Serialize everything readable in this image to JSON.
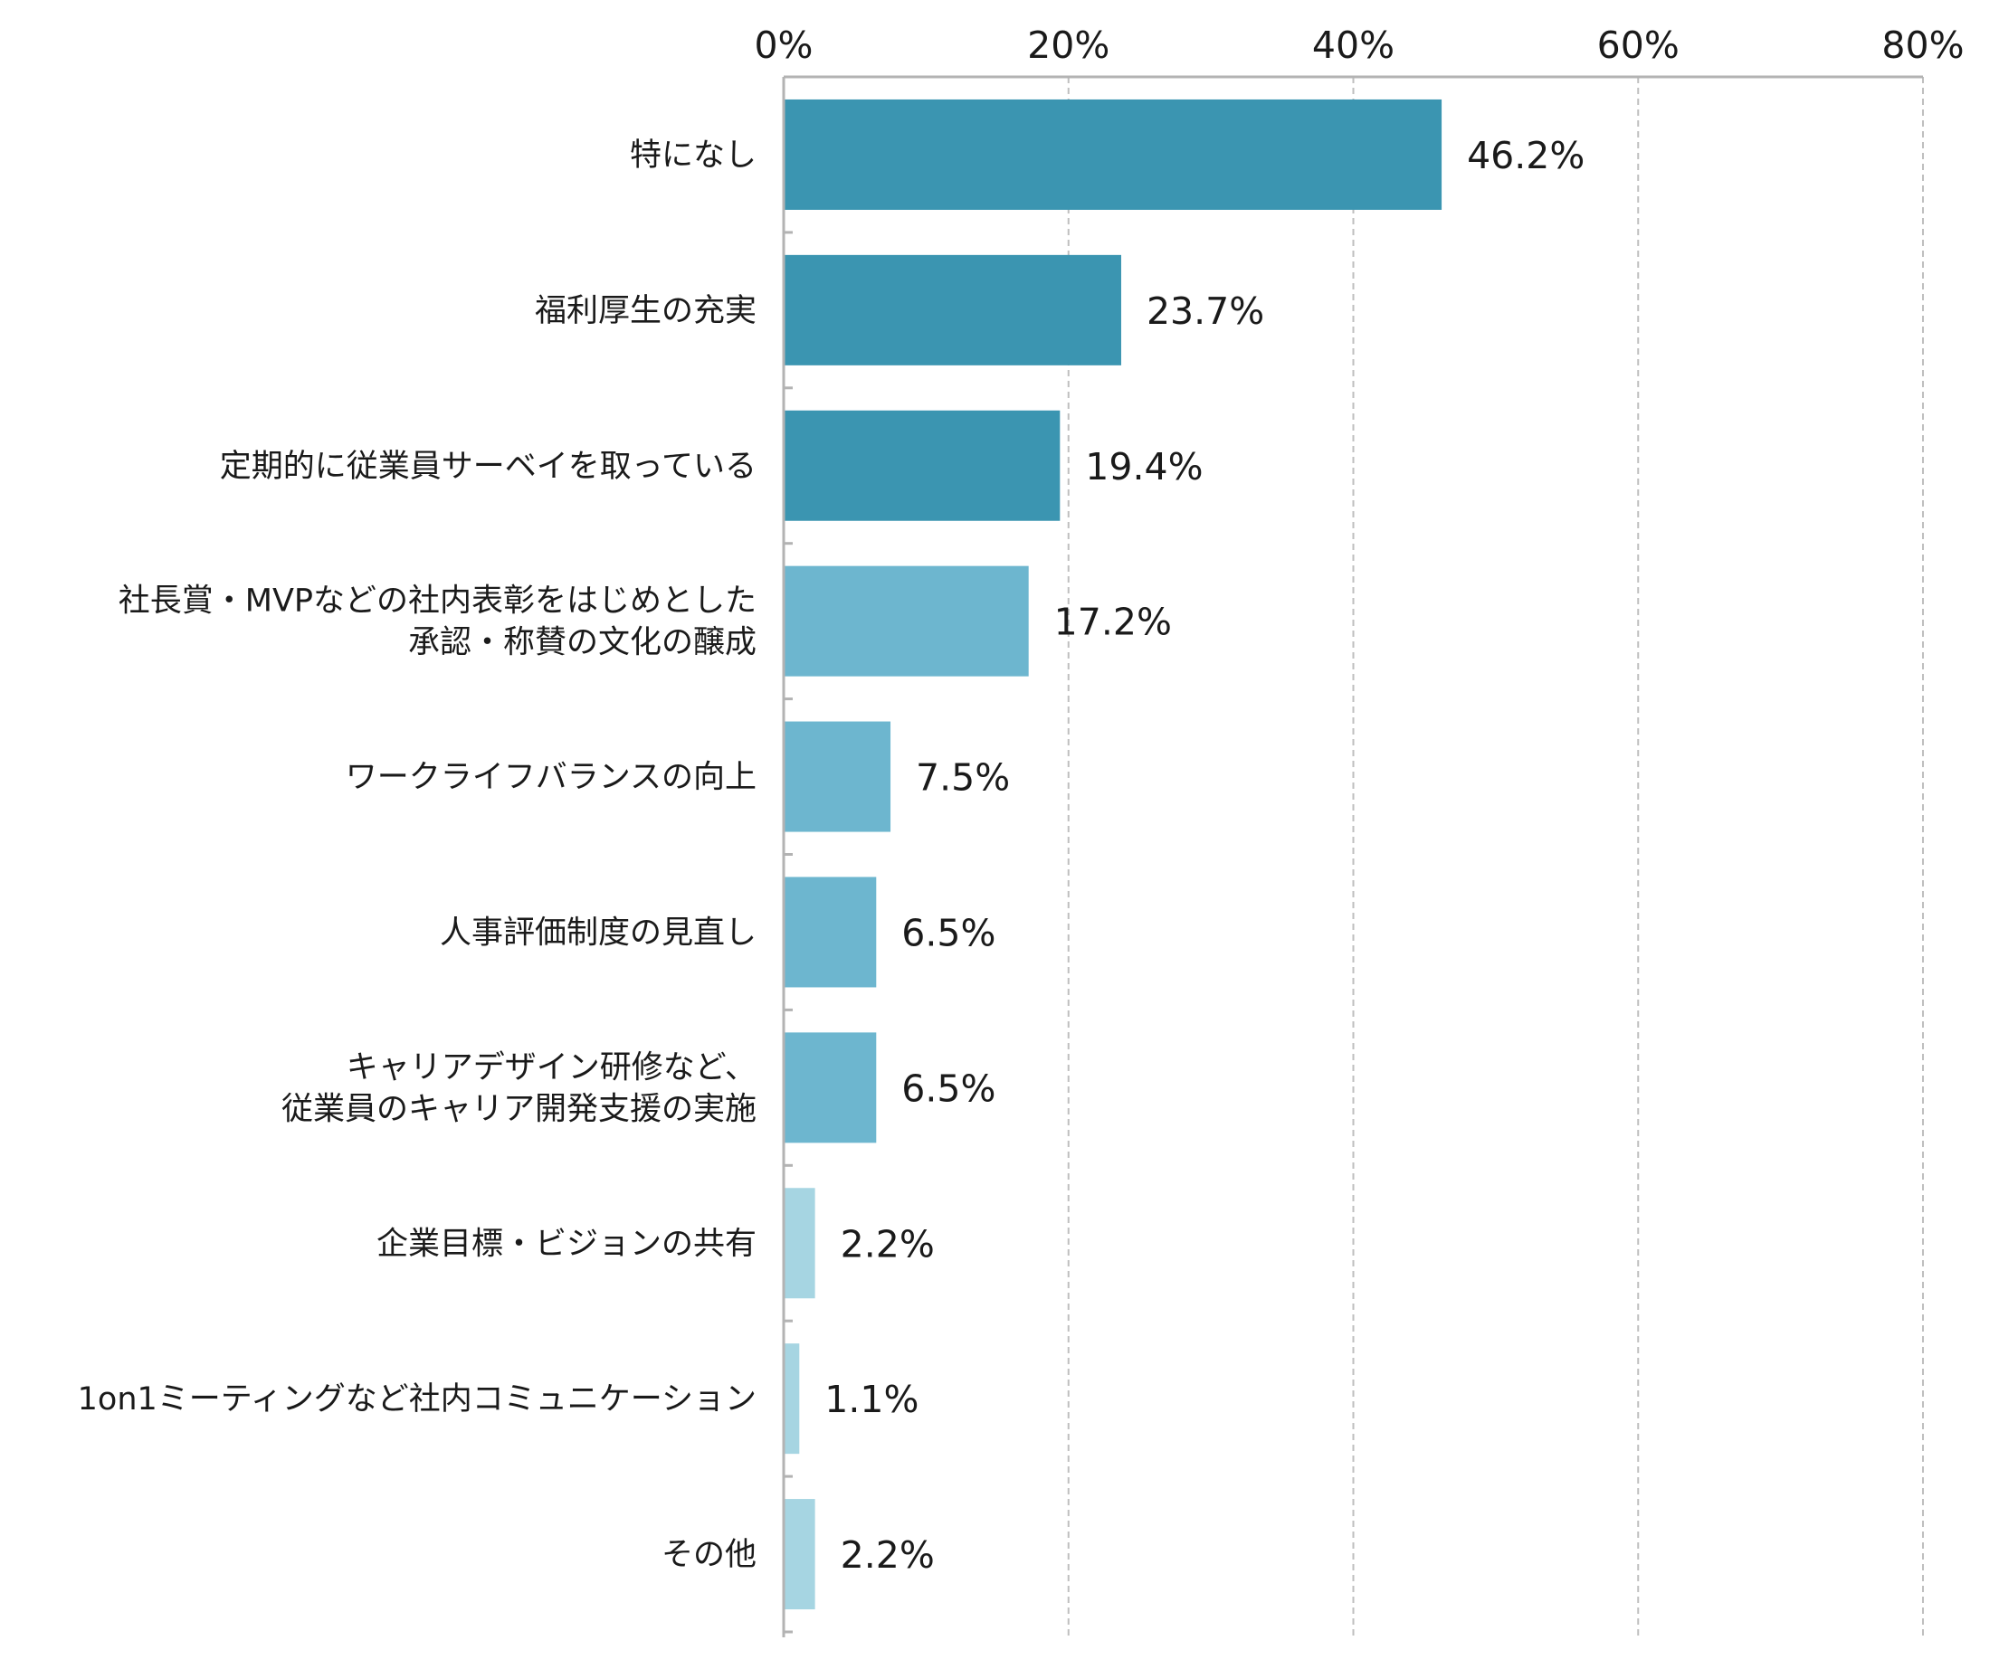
{
  "chart_data": {
    "type": "bar",
    "orientation": "horizontal",
    "categories": [
      [
        "特になし"
      ],
      [
        "福利厚生の充実"
      ],
      [
        "定期的に従業員サーベイを取っている"
      ],
      [
        "社長賞・MVPなどの社内表彰をはじめとした",
        "承認・称賛の文化の醸成"
      ],
      [
        "ワークライフバランスの向上"
      ],
      [
        "人事評価制度の見直し"
      ],
      [
        "キャリアデザイン研修など、",
        "従業員のキャリア開発支援の実施"
      ],
      [
        "企業目標・ビジョンの共有"
      ],
      [
        "1on1ミーティングなど社内コミュニケーション"
      ],
      [
        "その他"
      ]
    ],
    "values": [
      46.2,
      23.7,
      19.4,
      17.2,
      7.5,
      6.5,
      6.5,
      2.2,
      1.1,
      2.2
    ],
    "value_labels": [
      "46.2%",
      "23.7%",
      "19.4%",
      "17.2%",
      "7.5%",
      "6.5%",
      "6.5%",
      "2.2%",
      "1.1%",
      "2.2%"
    ],
    "xlim": [
      0,
      80
    ],
    "xticks": [
      0,
      20,
      40,
      60,
      80
    ],
    "xtick_labels": [
      "0%",
      "20%",
      "40%",
      "60%",
      "80%"
    ],
    "x_axis_position": "top",
    "grid": "vertical dashed",
    "legend": "none",
    "bar_colors": [
      "#3b95b1",
      "#3b95b1",
      "#3b95b1",
      "#6db6cf",
      "#6db6cf",
      "#6db6cf",
      "#6db6cf",
      "#a6d5e2",
      "#a6d5e2",
      "#a6d5e2"
    ],
    "grid_color": "#bfbfbf",
    "axis_color": "#b3b3b3"
  }
}
